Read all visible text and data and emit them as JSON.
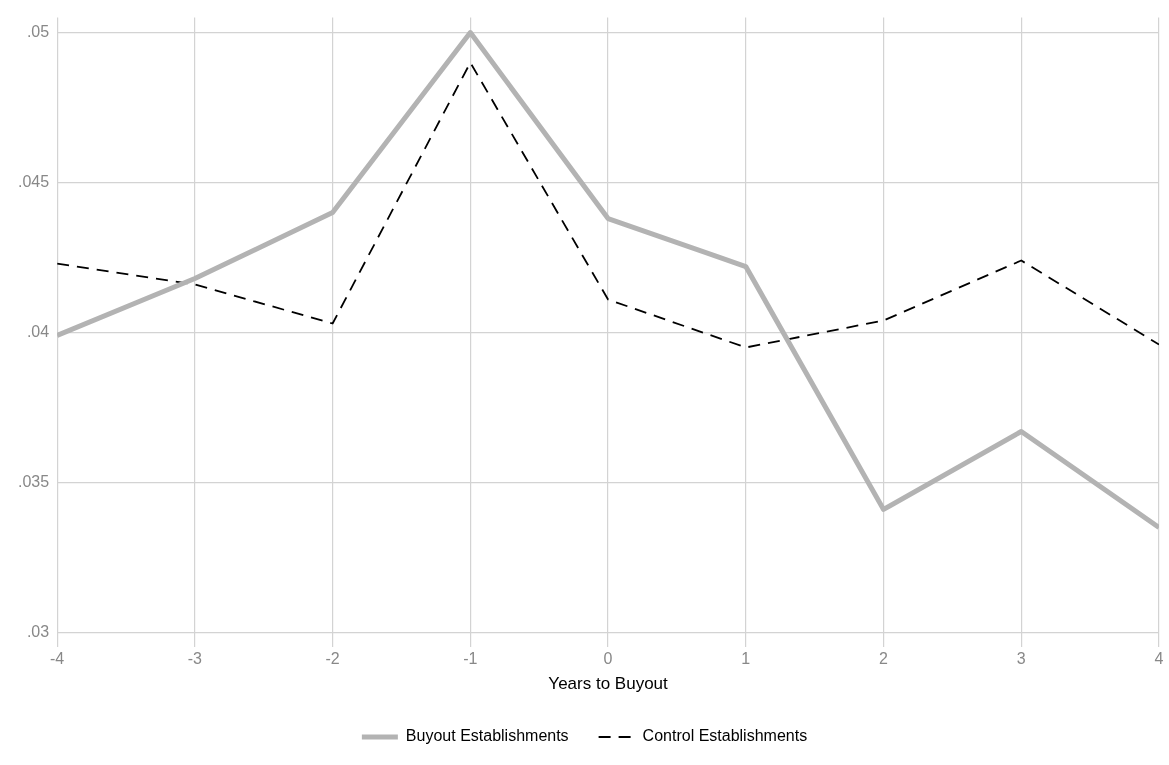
{
  "chart_data": {
    "type": "line",
    "xlabel": "Years to Buyout",
    "x": [
      -4,
      -3,
      -2,
      -1,
      0,
      1,
      2,
      3,
      4
    ],
    "series": [
      {
        "name": "Buyout Establishments",
        "color": "#b3b3b3",
        "line_style": "solid",
        "values": [
          0.0399,
          0.0418,
          0.044,
          0.05,
          0.0438,
          0.0422,
          0.0341,
          0.0367,
          0.0335
        ]
      },
      {
        "name": "Control Establishments",
        "color": "#000000",
        "line_style": "dashed",
        "values": [
          0.0423,
          0.0416,
          0.0403,
          0.049,
          0.0411,
          0.0395,
          0.0404,
          0.0424,
          0.0396
        ]
      }
    ],
    "xlim": [
      -4,
      4
    ],
    "xticks": [
      -4,
      -3,
      -2,
      -1,
      0,
      1,
      2,
      3,
      4
    ],
    "ylim": [
      0.0295,
      0.0505
    ],
    "yticks": [
      {
        "value": 0.03,
        "label": ".03"
      },
      {
        "value": 0.035,
        "label": ".035"
      },
      {
        "value": 0.04,
        "label": ".04"
      },
      {
        "value": 0.045,
        "label": ".045"
      },
      {
        "value": 0.05,
        "label": ".05"
      }
    ],
    "grid": true,
    "legend": "bottom",
    "marker": "none"
  }
}
